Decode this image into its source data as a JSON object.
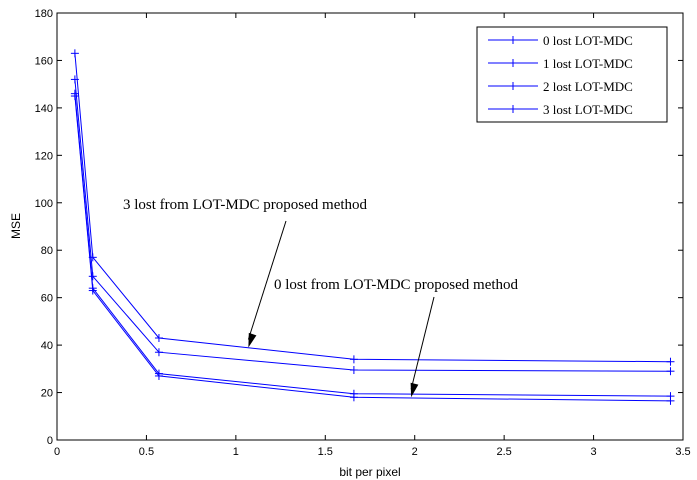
{
  "chart_data": {
    "type": "line",
    "xlabel": "bit per pixel",
    "ylabel": "MSE",
    "xlim": [
      0,
      3.5
    ],
    "ylim": [
      0,
      180
    ],
    "x_ticks": [
      "0",
      "0.5",
      "1",
      "1.5",
      "2",
      "2.5",
      "3",
      "3.5"
    ],
    "y_ticks": [
      "0",
      "20",
      "40",
      "60",
      "80",
      "100",
      "120",
      "140",
      "160",
      "180"
    ],
    "grid": false,
    "legend_position": "top-right",
    "line_color": "#0000ff",
    "series": [
      {
        "name": "0 lost LOT-MDC",
        "x": [
          0.1,
          0.2,
          0.57,
          1.66,
          3.43
        ],
        "y": [
          145,
          63,
          27,
          18,
          16.5
        ]
      },
      {
        "name": "1 lost LOT-MDC",
        "x": [
          0.1,
          0.2,
          0.57,
          1.66,
          3.43
        ],
        "y": [
          146,
          64,
          28,
          19.5,
          18.5
        ]
      },
      {
        "name": "2 lost LOT-MDC",
        "x": [
          0.1,
          0.2,
          0.57,
          1.66,
          3.43
        ],
        "y": [
          152,
          69,
          37,
          29.5,
          29
        ]
      },
      {
        "name": "3 lost LOT-MDC",
        "x": [
          0.1,
          0.2,
          0.57,
          1.66,
          3.43
        ],
        "y": [
          163,
          77,
          43,
          34,
          33
        ]
      }
    ],
    "annotations": [
      {
        "text": "3 lost from LOT-MDC proposed method",
        "target": [
          1.07,
          39
        ]
      },
      {
        "text": "0 lost from LOT-MDC proposed method",
        "target": [
          1.98,
          18
        ]
      }
    ]
  }
}
